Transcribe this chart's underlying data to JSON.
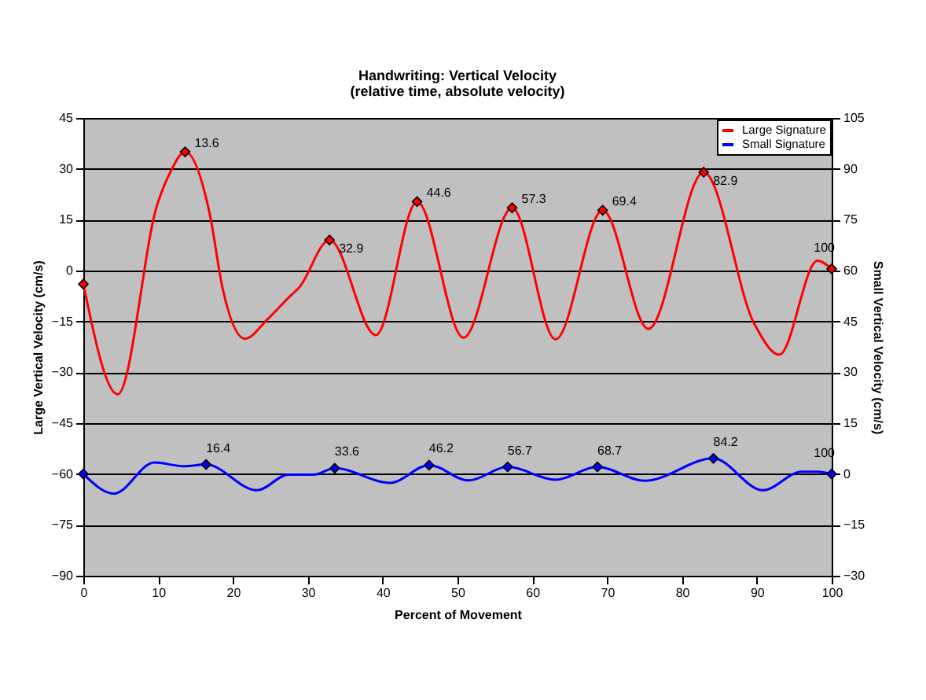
{
  "chart_data": {
    "type": "line",
    "title": "Handwriting: Vertical Velocity",
    "subtitle": "(relative time, absolute velocity)",
    "xlabel": "Percent of Movement",
    "ylabel": "Large Vertical Velocity (cm/s)",
    "y2label": "Small Vertical Velocity (cm/s)",
    "xlim": [
      0,
      100
    ],
    "xticks": [
      0,
      10,
      20,
      30,
      40,
      50,
      60,
      70,
      80,
      90,
      100
    ],
    "ylim": [
      -90,
      45
    ],
    "yticks": [
      -90,
      -75,
      -60,
      -45,
      -30,
      -15,
      0,
      15,
      30,
      45
    ],
    "y2lim": [
      -30,
      105
    ],
    "y2ticks": [
      -30,
      -15,
      0,
      15,
      30,
      45,
      60,
      75,
      90,
      105
    ],
    "grid": "y",
    "legend": "top right",
    "marker": "diamond",
    "line_style": "solid",
    "series": [
      {
        "name": "Large Signature",
        "color": "#ff0000",
        "type": "line",
        "marker": "none",
        "x": [
          0,
          4.6,
          9.9,
          11.6,
          13.6,
          16.9,
          18.6,
          21.6,
          24.6,
          27.7,
          28.8,
          32.9,
          39.1,
          44.6,
          50.8,
          57.3,
          63.1,
          69.4,
          75.5,
          82.9,
          89.7,
          93,
          98.1,
          100
        ],
        "values": [
          -4,
          -36.5,
          19.6,
          28.9,
          35,
          16.6,
          -5.1,
          -20.1,
          -14.4,
          -7.4,
          -5.1,
          9,
          -19,
          20.3,
          -19.8,
          18.5,
          -20.3,
          17.8,
          -17.2,
          29,
          -15.9,
          -24.8,
          2.9,
          0.5
        ]
      },
      {
        "color": "#ff0000",
        "type": "scatter",
        "x": [
          0,
          13.6,
          32.9,
          44.6,
          57.3,
          69.4,
          82.9,
          100
        ],
        "values": [
          -4,
          35,
          9,
          20.3,
          18.5,
          17.8,
          29,
          0.5
        ]
      },
      {
        "name": "Small Signature",
        "color": "#0000ff",
        "type": "line",
        "marker": "none",
        "axis": "y2",
        "x": [
          0,
          4.1,
          9.5,
          13.4,
          16.4,
          23.2,
          27.4,
          30.8,
          33.6,
          41,
          46.2,
          51.5,
          56.7,
          63.1,
          68.7,
          75,
          84.2,
          90.8,
          96,
          98.1,
          100
        ],
        "values": [
          0,
          -5.8,
          3.4,
          2.3,
          2.8,
          -4.8,
          -0.2,
          -0.2,
          1.7,
          -2.6,
          2.6,
          -1.9,
          2.1,
          -1.7,
          2.1,
          -2,
          4.6,
          -4.8,
          0.7,
          0.7,
          0
        ]
      },
      {
        "color": "#0000ff",
        "type": "scatter",
        "axis": "y2",
        "x": [
          0,
          16.4,
          33.6,
          46.2,
          56.7,
          68.7,
          84.2,
          100
        ],
        "values": [
          0,
          2.8,
          1.7,
          2.6,
          2.1,
          2.1,
          4.6,
          0
        ]
      }
    ],
    "annotations": [
      {
        "text": "13.6",
        "x": 13.6,
        "y": 35
      },
      {
        "text": "32.9",
        "x": 32.9,
        "y": 9
      },
      {
        "text": "44.6",
        "x": 44.6,
        "y": 20.3
      },
      {
        "text": "57.3",
        "x": 57.3,
        "y": 18.5
      },
      {
        "text": "69.4",
        "x": 69.4,
        "y": 17.8
      },
      {
        "text": "82.9",
        "x": 82.9,
        "y": 29
      },
      {
        "text": "100",
        "x": 100,
        "y": 0.5
      },
      {
        "text": "16.4",
        "x": 16.4,
        "y": -57.2
      },
      {
        "text": "33.6",
        "x": 33.6,
        "y": -58.3
      },
      {
        "text": "46.2",
        "x": 46.2,
        "y": -57.4
      },
      {
        "text": "56.7",
        "x": 56.7,
        "y": -57.9
      },
      {
        "text": "68.7",
        "x": 68.7,
        "y": -57.9
      },
      {
        "text": "84.2",
        "x": 84.2,
        "y": -55.4
      },
      {
        "text": "100",
        "x": 100,
        "y": -60
      }
    ]
  }
}
